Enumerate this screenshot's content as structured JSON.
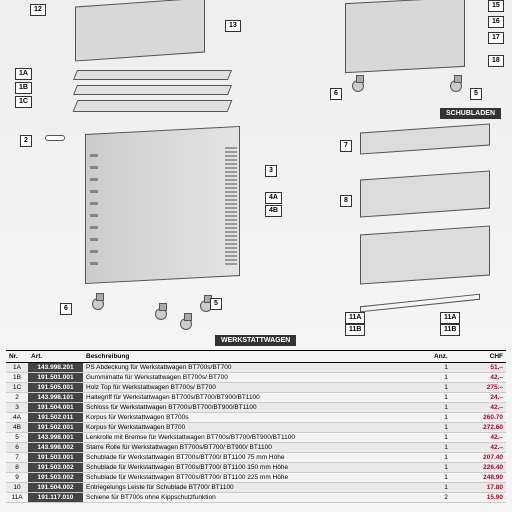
{
  "banners": {
    "werkstattwagen": "WERKSTATTWAGEN",
    "schubladen": "SCHUBLADEN"
  },
  "headers": {
    "nr": "Nr.",
    "art": "Art.",
    "beschreibung": "Beschreibung",
    "anz": "Anz.",
    "chf": "CHF"
  },
  "callouts": [
    "1A",
    "1B",
    "1C",
    "2",
    "3",
    "4A",
    "4B",
    "5",
    "6",
    "7",
    "8",
    "11A",
    "11B",
    "12",
    "13",
    "15",
    "16",
    "17",
    "18"
  ],
  "rows": [
    {
      "nr": "1A",
      "art": "143.998.201",
      "desc": "PS Abdeckung für Werkstattwagen BT700s/BT700",
      "anz": "1",
      "chf": "51.–"
    },
    {
      "nr": "1B",
      "art": "191.501.001",
      "desc": "Gummimatte für Werkstattwagen BT700s/ BT700",
      "anz": "1",
      "chf": "42.–"
    },
    {
      "nr": "1C",
      "art": "191.505.001",
      "desc": "Holz Top für Werkstattwagen BT700s/ BT700",
      "anz": "1",
      "chf": "275.–"
    },
    {
      "nr": "2",
      "art": "143.998.101",
      "desc": "Haltegriff für Werkstattwagen BT700s/BT700/BT900/BT1100",
      "anz": "1",
      "chf": "24.–"
    },
    {
      "nr": "3",
      "art": "191.504.001",
      "desc": "Schloss für Werkstattwagen BT700s/BT700/BT900/BT1100",
      "anz": "1",
      "chf": "42.–"
    },
    {
      "nr": "4A",
      "art": "191.502.011",
      "desc": "Korpus für Werkstattwagen BT700s",
      "anz": "1",
      "chf": "260.70"
    },
    {
      "nr": "4B",
      "art": "191.502.001",
      "desc": "Korpus für Werkstattwagen BT700",
      "anz": "1",
      "chf": "272.60"
    },
    {
      "nr": "5",
      "art": "143.998.001",
      "desc": "Lenkrolle mit Bremse für Werkstattwagen BT700s/BT700/BT900/BT1100",
      "anz": "1",
      "chf": "42.–"
    },
    {
      "nr": "6",
      "art": "143.998.002",
      "desc": "Starre Rolle für Werkstattwagen BT700s/BT700/ BT900/ BT1100",
      "anz": "1",
      "chf": "42.–"
    },
    {
      "nr": "7",
      "art": "191.503.001",
      "desc": "Schublade für Werkstattwagen BT700s/BT700/ BT1100 75 mm Höhe",
      "anz": "1",
      "chf": "207.40"
    },
    {
      "nr": "8",
      "art": "191.503.002",
      "desc": "Schublade für Werkstattwagen BT700s/BT700/ BT1100 150 mm Höhe",
      "anz": "1",
      "chf": "226.40"
    },
    {
      "nr": "9",
      "art": "191.503.002",
      "desc": "Schublade für Werkstattwagen BT700s/BT700/ BT1100 225 mm Höhe",
      "anz": "1",
      "chf": "248.90"
    },
    {
      "nr": "10",
      "art": "191.504.002",
      "desc": "Entriegelungs Leiste für Schublade BT700/ BT1100",
      "anz": "1",
      "chf": "17.80"
    },
    {
      "nr": "11A",
      "art": "191.117.010",
      "desc": "Schiene für BT700s ohne Kippschutzfunktion",
      "anz": "2",
      "chf": "15.90"
    }
  ]
}
